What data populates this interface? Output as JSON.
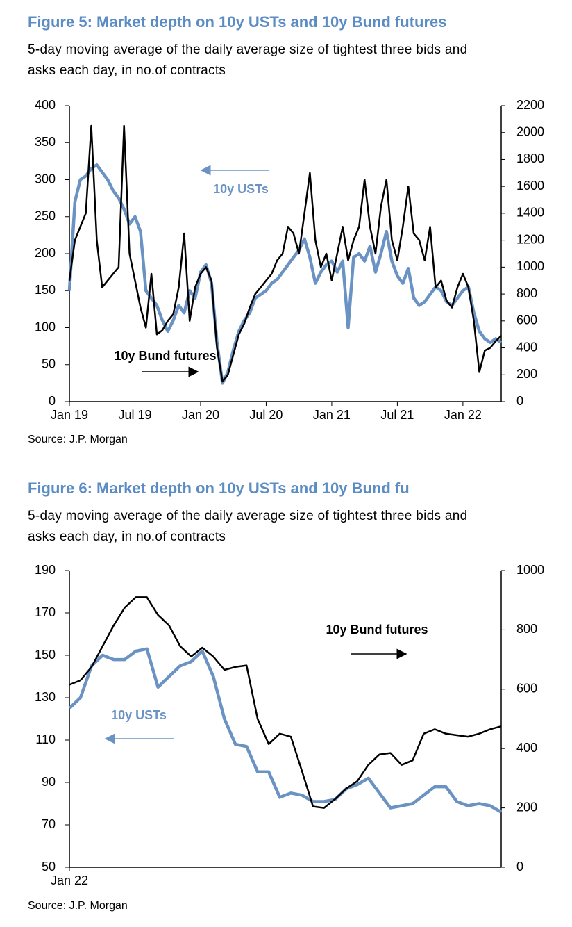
{
  "chart_data": [
    {
      "type": "line",
      "title": "Figure 5: Market depth on 10y USTs and 10y Bund futures",
      "subtitle": [
        "5-day moving average of the daily average size of tightest three bids and",
        "asks each day, in no.of contracts"
      ],
      "source": "Source: J.P. Morgan",
      "annotations": [
        "10y USTs",
        "10y Bund futures"
      ],
      "categories": [
        "Jan 19",
        null,
        null,
        null,
        null,
        null,
        null,
        null,
        null,
        null,
        null,
        null,
        "Jul 19",
        null,
        null,
        null,
        null,
        null,
        null,
        null,
        null,
        null,
        null,
        null,
        "Jan 20",
        null,
        null,
        null,
        null,
        null,
        null,
        null,
        null,
        null,
        null,
        null,
        "Jul 20",
        null,
        null,
        null,
        null,
        null,
        null,
        null,
        null,
        null,
        null,
        null,
        "Jan 21",
        null,
        null,
        null,
        null,
        null,
        null,
        null,
        null,
        null,
        null,
        null,
        "Jul 21",
        null,
        null,
        null,
        null,
        null,
        null,
        null,
        null,
        null,
        null,
        null,
        "Jan 22",
        null,
        null,
        null,
        null,
        null,
        null,
        null
      ],
      "series": [
        {
          "name": "10y USTs",
          "color": "#6a93c4",
          "axis": "y",
          "values": [
            150,
            270,
            300,
            305,
            315,
            320,
            310,
            300,
            285,
            275,
            260,
            240,
            250,
            230,
            150,
            140,
            130,
            110,
            95,
            110,
            130,
            120,
            150,
            140,
            175,
            185,
            160,
            80,
            25,
            40,
            70,
            95,
            110,
            120,
            140,
            145,
            150,
            160,
            165,
            175,
            185,
            195,
            205,
            220,
            195,
            160,
            175,
            185,
            190,
            175,
            190,
            100,
            195,
            200,
            190,
            210,
            175,
            200,
            230,
            190,
            170,
            160,
            180,
            140,
            130,
            135,
            145,
            155,
            150,
            135,
            130,
            140,
            150,
            155,
            120,
            95,
            85,
            80,
            85,
            80
          ]
        },
        {
          "name": "10y Bund futures",
          "color": "#000000",
          "axis": "y2",
          "values": [
            900,
            1200,
            1300,
            1400,
            2050,
            1200,
            850,
            900,
            950,
            1000,
            2050,
            1100,
            900,
            700,
            550,
            950,
            500,
            530,
            600,
            650,
            850,
            1250,
            600,
            850,
            950,
            1000,
            900,
            400,
            150,
            200,
            350,
            500,
            580,
            700,
            800,
            850,
            900,
            950,
            1050,
            1100,
            1300,
            1250,
            1100,
            1400,
            1700,
            1200,
            1000,
            1100,
            900,
            1100,
            1300,
            1050,
            1200,
            1300,
            1650,
            1300,
            1100,
            1450,
            1650,
            1200,
            1050,
            1300,
            1600,
            1250,
            1200,
            1050,
            1300,
            850,
            900,
            750,
            700,
            850,
            950,
            850,
            600,
            220,
            380,
            400,
            450,
            490
          ]
        }
      ],
      "ylim": [
        0,
        400
      ],
      "yticks": [
        0,
        50,
        100,
        150,
        200,
        250,
        300,
        350,
        400
      ],
      "y2lim": [
        0,
        2200
      ],
      "y2ticks": [
        0,
        200,
        400,
        600,
        800,
        1000,
        1200,
        1400,
        1600,
        1800,
        2000,
        2200
      ]
    },
    {
      "type": "line",
      "title": "Figure 6: Market depth on 10y USTs and 10y Bund fu",
      "subtitle": [
        "5-day moving average of the daily average size of tightest three bids and",
        "asks each day, in no.of contracts"
      ],
      "source": "Source: J.P. Morgan",
      "annotations": [
        "10y Bund futures",
        "10y USTs"
      ],
      "categories": [
        "Jan 22",
        null,
        null,
        null,
        null,
        null,
        null,
        null,
        null,
        null,
        null,
        null,
        null,
        null,
        null,
        null,
        null,
        null,
        null,
        null,
        null,
        null,
        null,
        null,
        null,
        null,
        null,
        null,
        null,
        null,
        null,
        null,
        null,
        null,
        null,
        null,
        null,
        null,
        null,
        null
      ],
      "series": [
        {
          "name": "10y USTs",
          "color": "#6a93c4",
          "axis": "y",
          "values": [
            125,
            130,
            145,
            150,
            148,
            148,
            152,
            153,
            135,
            140,
            145,
            147,
            152,
            140,
            120,
            108,
            107,
            95,
            95,
            83,
            85,
            84,
            81,
            81,
            82,
            87,
            89,
            92,
            85,
            78,
            79,
            80,
            84,
            88,
            88,
            81,
            79,
            80,
            79,
            76
          ]
        },
        {
          "name": "10y Bund futures",
          "color": "#000000",
          "axis": "y2",
          "values": [
            615,
            630,
            675,
            745,
            815,
            875,
            910,
            910,
            850,
            815,
            745,
            710,
            740,
            710,
            665,
            675,
            680,
            500,
            415,
            450,
            440,
            325,
            205,
            200,
            230,
            265,
            290,
            345,
            380,
            385,
            345,
            360,
            450,
            465,
            450,
            445,
            440,
            450,
            465,
            475
          ]
        }
      ],
      "ylim": [
        50,
        190
      ],
      "yticks": [
        50,
        70,
        90,
        110,
        130,
        150,
        170,
        190
      ],
      "y2lim": [
        0,
        1000
      ],
      "y2ticks": [
        0,
        200,
        400,
        600,
        800,
        1000
      ]
    }
  ]
}
